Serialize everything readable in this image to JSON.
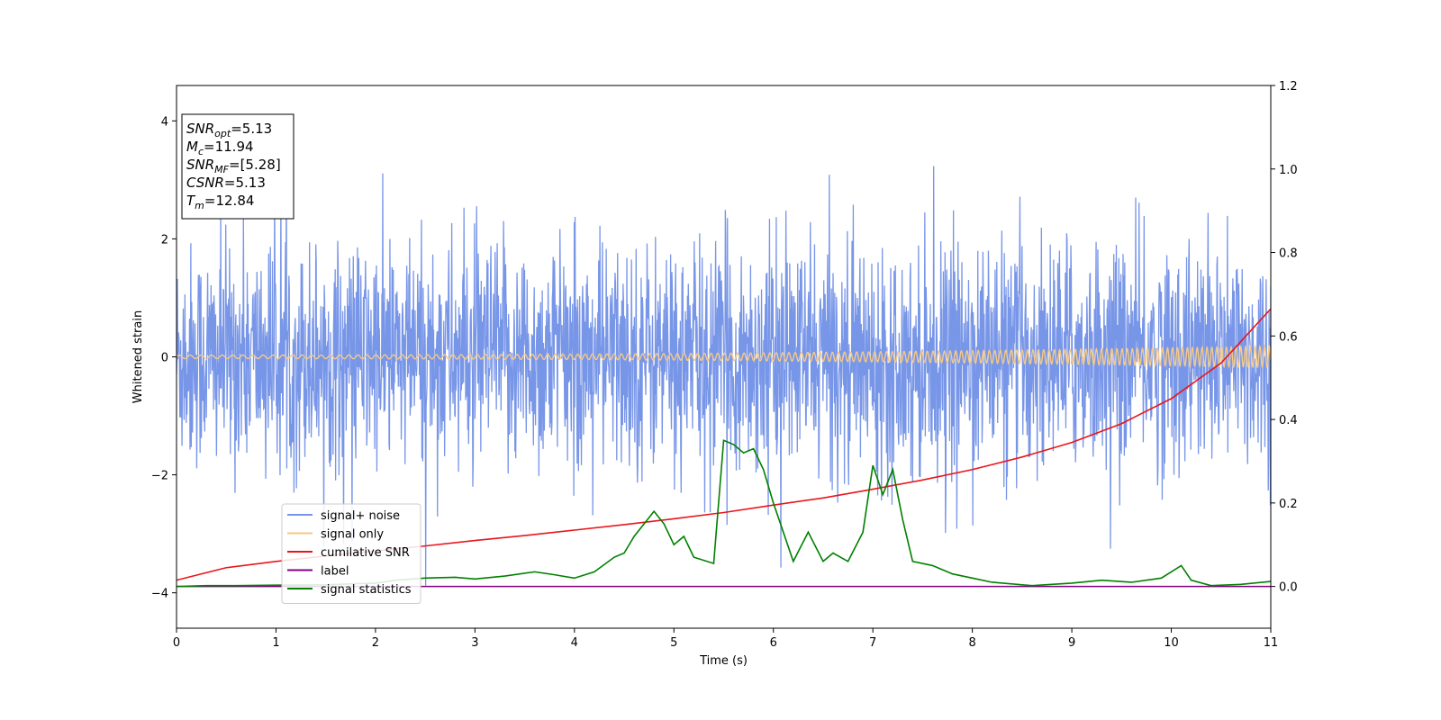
{
  "chart_data": {
    "type": "line",
    "xlabel": "Time (s)",
    "ylabel": "Whitened strain",
    "xlim": [
      0,
      11
    ],
    "ylim": [
      -4.6,
      4.6
    ],
    "y2lim": [
      -0.1,
      1.2
    ],
    "x_ticks": [
      0,
      1,
      2,
      3,
      4,
      5,
      6,
      7,
      8,
      9,
      10,
      11
    ],
    "y_ticks": [
      -4,
      -2,
      0,
      2,
      4
    ],
    "y2_ticks": [
      0.0,
      0.2,
      0.4,
      0.6,
      0.8,
      1.0,
      1.2
    ],
    "y2_tick_labels": [
      "0.0",
      "0.2",
      "0.4",
      "0.6",
      "0.8",
      "1.0",
      "1.2"
    ],
    "legend_position": "lower-left",
    "grid": false,
    "annotations": [
      {
        "base": "SNR",
        "sub": "opt",
        "value": "=5.13"
      },
      {
        "base": "M",
        "sub": "c",
        "value": "=11.94"
      },
      {
        "base": "SNR",
        "sub": "MF",
        "value": "=[5.28]"
      },
      {
        "base": "CSNR",
        "sub": "",
        "value": "=5.13"
      },
      {
        "base": "T",
        "sub": "m",
        "value": "=12.84"
      }
    ],
    "series": [
      {
        "name": "signal+ noise",
        "axis": "left",
        "color": "#7896e8",
        "style": "noise",
        "amplitude_range": [
          -2.5,
          2.5
        ],
        "peak_range": [
          -4.1,
          4.15
        ]
      },
      {
        "name": "signal only",
        "axis": "left",
        "color": "#f5c987",
        "style": "chirp",
        "amplitude_start": 0.03,
        "amplitude_end": 0.18
      },
      {
        "name": "cumilative SNR",
        "axis": "right",
        "color": "#e8161c",
        "x": [
          0,
          0.5,
          1,
          1.5,
          2,
          2.5,
          3,
          3.5,
          4,
          4.5,
          5,
          5.5,
          6,
          6.5,
          7,
          7.5,
          8,
          8.5,
          9,
          9.5,
          10,
          10.5,
          11
        ],
        "y": [
          0.015,
          0.045,
          0.06,
          0.073,
          0.085,
          0.097,
          0.11,
          0.122,
          0.135,
          0.148,
          0.162,
          0.177,
          0.195,
          0.212,
          0.233,
          0.255,
          0.28,
          0.31,
          0.345,
          0.39,
          0.45,
          0.535,
          0.665
        ]
      },
      {
        "name": "label",
        "axis": "right",
        "color": "#800080",
        "x": [
          0,
          11
        ],
        "y": [
          0.0,
          0.0
        ]
      },
      {
        "name": "signal statistics",
        "axis": "right",
        "color": "#008000",
        "x": [
          0,
          0.3,
          0.6,
          1.0,
          1.5,
          2.0,
          2.2,
          2.5,
          2.8,
          3.0,
          3.3,
          3.6,
          3.8,
          4.0,
          4.2,
          4.4,
          4.5,
          4.6,
          4.8,
          4.9,
          5.0,
          5.1,
          5.2,
          5.4,
          5.5,
          5.6,
          5.7,
          5.8,
          5.9,
          6.0,
          6.2,
          6.35,
          6.5,
          6.6,
          6.75,
          6.9,
          7.0,
          7.1,
          7.2,
          7.3,
          7.4,
          7.6,
          7.8,
          8.0,
          8.2,
          8.6,
          9.0,
          9.3,
          9.6,
          9.9,
          10.1,
          10.2,
          10.4,
          10.7,
          11.0
        ],
        "y": [
          0.0,
          0.002,
          0.002,
          0.003,
          0.004,
          0.008,
          0.015,
          0.02,
          0.022,
          0.018,
          0.025,
          0.035,
          0.028,
          0.02,
          0.035,
          0.07,
          0.08,
          0.12,
          0.18,
          0.15,
          0.1,
          0.12,
          0.07,
          0.055,
          0.35,
          0.34,
          0.32,
          0.33,
          0.28,
          0.2,
          0.06,
          0.13,
          0.06,
          0.08,
          0.06,
          0.13,
          0.29,
          0.22,
          0.28,
          0.16,
          0.06,
          0.05,
          0.03,
          0.02,
          0.01,
          0.002,
          0.008,
          0.015,
          0.01,
          0.02,
          0.05,
          0.015,
          0.002,
          0.005,
          0.012
        ]
      }
    ]
  }
}
